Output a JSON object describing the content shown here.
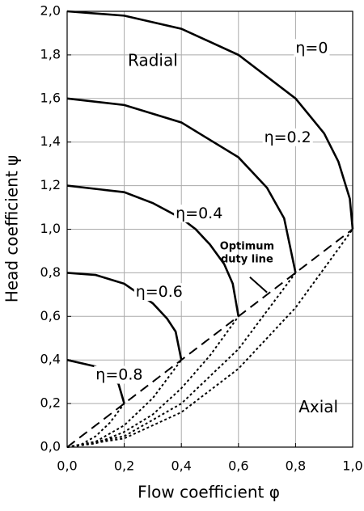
{
  "chart_data": {
    "type": "line",
    "x_label": "Flow coefficient φ",
    "y_label": "Head coefficient ψ",
    "xlim": [
      0,
      1
    ],
    "ylim": [
      0,
      2
    ],
    "grid": true,
    "xticks": [
      {
        "value": 0,
        "label": "0,0"
      },
      {
        "value": 0.2,
        "label": "0,2"
      },
      {
        "value": 0.4,
        "label": "0,4"
      },
      {
        "value": 0.6,
        "label": "0,6"
      },
      {
        "value": 0.8,
        "label": "0,8"
      },
      {
        "value": 1,
        "label": "1,0"
      }
    ],
    "yticks": [
      {
        "value": 0,
        "label": "0,0"
      },
      {
        "value": 0.2,
        "label": "0,2"
      },
      {
        "value": 0.4,
        "label": "0,4"
      },
      {
        "value": 0.6,
        "label": "0,6"
      },
      {
        "value": 0.8,
        "label": "0,8"
      },
      {
        "value": 1,
        "label": "1,0"
      },
      {
        "value": 1.2,
        "label": "1,2"
      },
      {
        "value": 1.4,
        "label": "1,4"
      },
      {
        "value": 1.6,
        "label": "1,6"
      },
      {
        "value": 1.8,
        "label": "1,8"
      },
      {
        "value": 2,
        "label": "2,0"
      }
    ],
    "series": [
      {
        "name": "η=0",
        "color": "#000000",
        "dash": "solid",
        "x": [
          0,
          0.2,
          0.4,
          0.6,
          0.8,
          0.9,
          0.95,
          0.99,
          1.0
        ],
        "values": [
          2.0,
          1.98,
          1.92,
          1.8,
          1.6,
          1.44,
          1.31,
          1.14,
          1.0
        ]
      },
      {
        "name": "η=0.2",
        "color": "#000000",
        "dash": "solid",
        "x": [
          0,
          0.2,
          0.4,
          0.6,
          0.7,
          0.76,
          0.8
        ],
        "values": [
          1.6,
          1.57,
          1.49,
          1.33,
          1.19,
          1.05,
          0.8
        ]
      },
      {
        "name": "η=0.4",
        "color": "#000000",
        "dash": "solid",
        "x": [
          0,
          0.2,
          0.3,
          0.4,
          0.45,
          0.5,
          0.55,
          0.58,
          0.6
        ],
        "values": [
          1.2,
          1.17,
          1.12,
          1.05,
          1.0,
          0.93,
          0.84,
          0.75,
          0.6
        ]
      },
      {
        "name": "η=0.6",
        "color": "#000000",
        "dash": "solid",
        "x": [
          0,
          0.1,
          0.2,
          0.3,
          0.35,
          0.38,
          0.4
        ],
        "values": [
          0.8,
          0.79,
          0.75,
          0.66,
          0.59,
          0.53,
          0.4
        ]
      },
      {
        "name": "η=0.8",
        "color": "#000000",
        "dash": "solid",
        "x": [
          0,
          0.1,
          0.15,
          0.18,
          0.2
        ],
        "values": [
          0.4,
          0.37,
          0.33,
          0.29,
          0.2
        ]
      },
      {
        "color": "#000000",
        "dash": "dot",
        "x": [
          0,
          0.05,
          0.1,
          0.15,
          0.2
        ],
        "values": [
          0,
          0.0125,
          0.05,
          0.1125,
          0.2
        ]
      },
      {
        "color": "#000000",
        "dash": "dot",
        "x": [
          0,
          0.1,
          0.2,
          0.3,
          0.4
        ],
        "values": [
          0,
          0.025,
          0.1,
          0.225,
          0.4
        ]
      },
      {
        "color": "#000000",
        "dash": "dot",
        "x": [
          0,
          0.1,
          0.2,
          0.3,
          0.4,
          0.5,
          0.6
        ],
        "values": [
          0,
          0.017,
          0.07,
          0.15,
          0.27,
          0.42,
          0.6
        ]
      },
      {
        "color": "#000000",
        "dash": "dot",
        "x": [
          0,
          0.2,
          0.4,
          0.6,
          0.8
        ],
        "values": [
          0,
          0.05,
          0.2,
          0.45,
          0.8
        ]
      },
      {
        "color": "#000000",
        "dash": "dot",
        "x": [
          0,
          0.2,
          0.4,
          0.6,
          0.8,
          1.0
        ],
        "values": [
          0,
          0.04,
          0.16,
          0.36,
          0.64,
          1.0
        ]
      },
      {
        "color": "#000000",
        "dash": "dash",
        "x": [
          0,
          1.0
        ],
        "values": [
          0,
          1.0
        ]
      }
    ],
    "annotations": [
      "Radial",
      "Axial",
      "Optimum",
      "duty line"
    ]
  }
}
